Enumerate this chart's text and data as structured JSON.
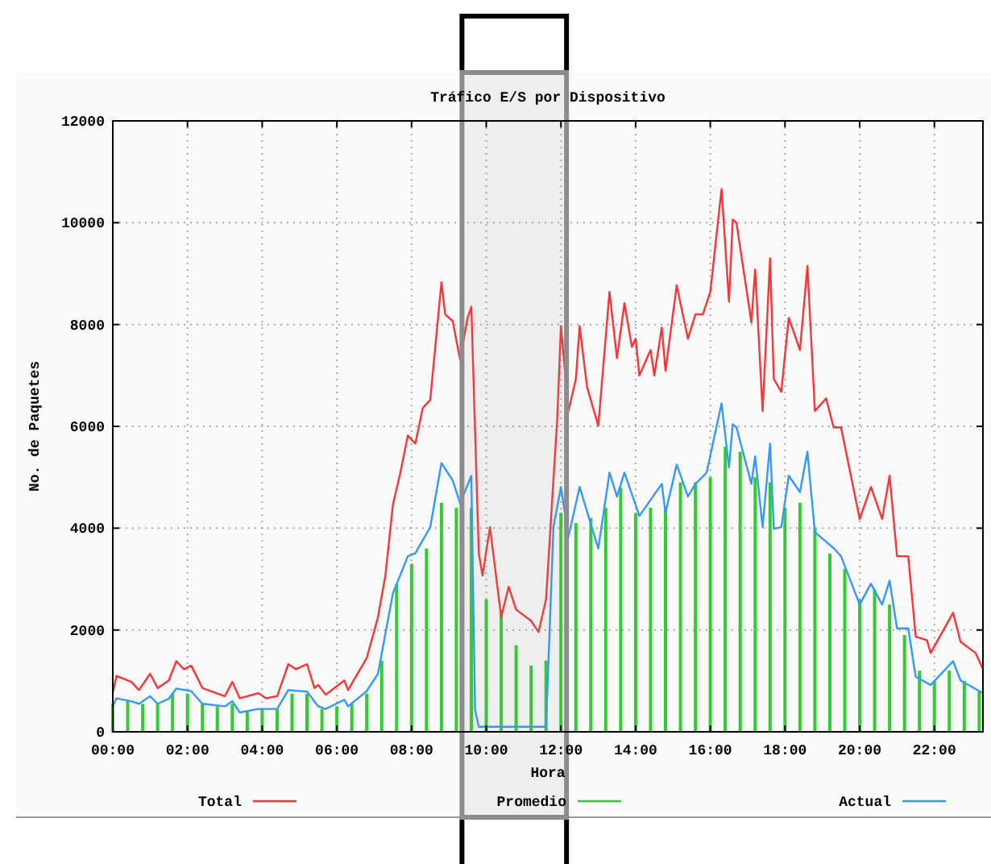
{
  "chart_data": {
    "type": "line",
    "title": "Tráfico E/S por Dispositivo",
    "xlabel": "Hora",
    "ylabel": "No. de Paquetes",
    "xlim": [
      0,
      23.3
    ],
    "xticks": [
      {
        "value": 0,
        "label": "00:00"
      },
      {
        "value": 2,
        "label": "02:00"
      },
      {
        "value": 4,
        "label": "04:00"
      },
      {
        "value": 6,
        "label": "06:00"
      },
      {
        "value": 8,
        "label": "08:00"
      },
      {
        "value": 10,
        "label": "10:00"
      },
      {
        "value": 12,
        "label": "12:00"
      },
      {
        "value": 14,
        "label": "14:00"
      },
      {
        "value": 16,
        "label": "16:00"
      },
      {
        "value": 18,
        "label": "18:00"
      },
      {
        "value": 20,
        "label": "20:00"
      },
      {
        "value": 22,
        "label": "22:00"
      }
    ],
    "ylim": [
      0,
      12000
    ],
    "yticks": [
      0,
      2000,
      4000,
      6000,
      8000,
      10000,
      12000
    ],
    "grid": true,
    "legend": "bottom",
    "bands": [
      {
        "axis": "x",
        "from": 9.35,
        "to": 12.15,
        "color": "#8c8c8c"
      }
    ],
    "series": [
      {
        "name": "Total",
        "color": "#ff3333",
        "x": [
          0,
          0.1,
          0.5,
          0.7,
          1,
          1.2,
          1.5,
          1.7,
          1.9,
          2.1,
          2.4,
          3,
          3.2,
          3.4,
          3.9,
          4.1,
          4.4,
          4.7,
          4.9,
          5.2,
          5.4,
          5.5,
          5.7,
          6.2,
          6.3,
          6.8,
          7.1,
          7.3,
          7.5,
          7.7,
          7.9,
          8.1,
          8.3,
          8.5,
          8.8,
          8.9,
          9.1,
          9.3,
          9.5,
          9.6,
          9.8,
          9.9,
          10.1,
          10.4,
          10.6,
          10.8,
          11.2,
          11.4,
          11.6,
          11.9,
          12,
          12.2,
          12.4,
          12.5,
          12.7,
          13,
          13.3,
          13.5,
          13.7,
          13.9,
          14,
          14.1,
          14.4,
          14.5,
          14.7,
          14.8,
          15.1,
          15.4,
          15.6,
          15.8,
          16,
          16.3,
          16.5,
          16.6,
          16.7,
          17.1,
          17.2,
          17.4,
          17.6,
          17.7,
          17.9,
          18.1,
          18.4,
          18.6,
          18.8,
          19.1,
          19.3,
          19.5,
          20,
          20.3,
          20.6,
          20.8,
          21,
          21.3,
          21.5,
          21.8,
          21.9,
          22.5,
          22.7,
          23.1,
          23.3
        ],
        "values": [
          760,
          1100,
          980,
          820,
          1140,
          860,
          1010,
          1390,
          1230,
          1300,
          860,
          700,
          980,
          660,
          760,
          660,
          700,
          1330,
          1230,
          1330,
          860,
          920,
          730,
          1010,
          820,
          1450,
          2250,
          3070,
          4460,
          5090,
          5820,
          5660,
          6360,
          6520,
          8830,
          8200,
          8070,
          7310,
          8130,
          8350,
          3510,
          3070,
          4020,
          2250,
          2850,
          2400,
          2180,
          1960,
          2600,
          6140,
          7970,
          6300,
          6930,
          7970,
          6770,
          6010,
          8640,
          7340,
          8420,
          7560,
          7720,
          7000,
          7500,
          7000,
          7940,
          7090,
          8770,
          7720,
          8200,
          8200,
          8640,
          10660,
          8450,
          10060,
          10000,
          8040,
          9080,
          6300,
          9300,
          6930,
          6680,
          8130,
          7500,
          9150,
          6300,
          6550,
          5980,
          5980,
          4180,
          4810,
          4180,
          5030,
          3450,
          3450,
          1870,
          1800,
          1550,
          2340,
          1770,
          1550,
          1230
        ]
      },
      {
        "name": "Promedio",
        "type": "bar",
        "color": "#33cc33",
        "x": [
          0,
          0.4,
          0.8,
          1.2,
          1.6,
          2,
          2.4,
          2.8,
          3.2,
          3.6,
          4,
          4.4,
          4.8,
          5.2,
          5.6,
          6,
          6.4,
          6.8,
          7.2,
          7.6,
          8,
          8.4,
          8.8,
          9.2,
          9.6,
          10,
          10.4,
          10.8,
          11.2,
          11.6,
          12,
          12.4,
          12.8,
          13.2,
          13.6,
          14,
          14.4,
          14.8,
          15.2,
          15.6,
          16,
          16.4,
          16.8,
          17.2,
          17.6,
          18,
          18.4,
          18.8,
          19.2,
          19.6,
          20,
          20.4,
          20.8,
          21.2,
          21.6,
          22,
          22.4,
          22.8,
          23.2
        ],
        "values": [
          550,
          600,
          550,
          550,
          750,
          750,
          550,
          500,
          550,
          400,
          450,
          450,
          750,
          750,
          450,
          500,
          550,
          750,
          1400,
          2900,
          3300,
          3600,
          4500,
          4400,
          4400,
          2600,
          2400,
          1700,
          1300,
          1400,
          4300,
          4100,
          4200,
          4400,
          4800,
          4300,
          4400,
          4400,
          4900,
          4900,
          5000,
          5600,
          5500,
          5000,
          4900,
          4400,
          4500,
          4000,
          3500,
          3200,
          2600,
          2800,
          2500,
          1900,
          1200,
          1000,
          1200,
          1000,
          800
        ]
      },
      {
        "name": "Actual",
        "color": "#3399ff",
        "x": [
          0,
          0.1,
          0.5,
          0.7,
          1,
          1.2,
          1.5,
          1.7,
          2.1,
          2.4,
          3,
          3.2,
          3.4,
          3.9,
          4.4,
          4.7,
          5.2,
          5.5,
          5.7,
          6.2,
          6.3,
          6.8,
          7.1,
          7.3,
          7.5,
          7.9,
          8.1,
          8.5,
          8.8,
          9.1,
          9.3,
          9.6,
          9.7,
          9.8,
          11.6,
          11.8,
          12,
          12.2,
          12.5,
          13,
          13.3,
          13.5,
          13.7,
          14.1,
          14.7,
          14.8,
          15.1,
          15.4,
          15.6,
          15.9,
          16.3,
          16.5,
          16.6,
          16.7,
          17.1,
          17.2,
          17.4,
          17.6,
          17.7,
          17.9,
          18.1,
          18.4,
          18.6,
          18.8,
          19.3,
          19.5,
          20,
          20.3,
          20.6,
          20.8,
          21,
          21.3,
          21.5,
          21.9,
          22.5,
          22.7,
          23.3
        ],
        "values": [
          500,
          660,
          600,
          550,
          700,
          550,
          650,
          850,
          800,
          550,
          500,
          600,
          380,
          450,
          450,
          820,
          790,
          500,
          450,
          630,
          500,
          800,
          1140,
          1930,
          2720,
          3450,
          3510,
          4020,
          5280,
          4940,
          4490,
          5030,
          440,
          100,
          100,
          4020,
          4810,
          3830,
          4810,
          3600,
          5090,
          4620,
          5090,
          4240,
          4870,
          4300,
          5250,
          4620,
          4870,
          5090,
          6450,
          5190,
          6040,
          5980,
          4870,
          5410,
          4020,
          5660,
          3990,
          4020,
          5030,
          4710,
          5500,
          3920,
          3610,
          3450,
          2500,
          2910,
          2500,
          2970,
          2030,
          2030,
          1080,
          920,
          1390,
          1010,
          760
        ]
      }
    ]
  }
}
